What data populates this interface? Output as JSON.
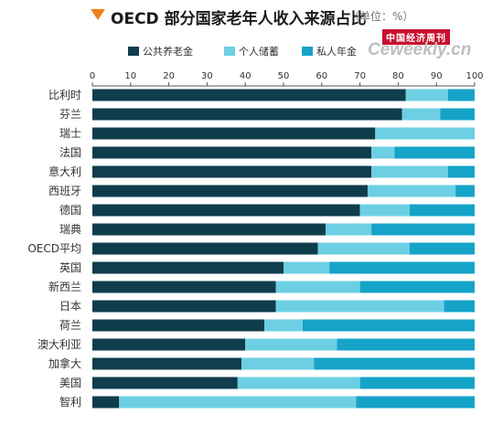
{
  "header": {
    "title": "OECD 部分国家老年人收入来源占比",
    "unit": "（单位：%）"
  },
  "watermark": {
    "top": "中国经济周刊",
    "bottom": "Ceweekly.cn"
  },
  "colors": {
    "title_marker": "#f07f1e",
    "public_pension": "#0f3d4c",
    "personal_savings": "#6dcfe4",
    "private_pension": "#16a3c8"
  },
  "chart_data": {
    "type": "bar",
    "orientation": "horizontal",
    "stacked": true,
    "title": "OECD 部分国家老年人收入来源占比",
    "xlim": [
      0,
      100
    ],
    "xticks": [
      0,
      10,
      20,
      30,
      40,
      50,
      60,
      70,
      80,
      90,
      100
    ],
    "legend_position": "top",
    "grid": false,
    "categories": [
      "比利时",
      "芬兰",
      "瑞士",
      "法国",
      "意大利",
      "西班牙",
      "德国",
      "瑞典",
      "OECD平均",
      "英国",
      "新西兰",
      "日本",
      "荷兰",
      "澳大利亚",
      "加拿大",
      "美国",
      "智利"
    ],
    "series": [
      {
        "name": "公共养老金",
        "color": "#0f3d4c",
        "values": [
          82,
          81,
          74,
          73,
          73,
          72,
          70,
          61,
          59,
          50,
          48,
          48,
          45,
          40,
          39,
          38,
          7
        ]
      },
      {
        "name": "个人储蓄",
        "color": "#6dcfe4",
        "values": [
          11,
          10,
          26,
          6,
          20,
          23,
          13,
          12,
          24,
          12,
          22,
          44,
          10,
          24,
          19,
          32,
          62
        ]
      },
      {
        "name": "私人年金",
        "color": "#16a3c8",
        "values": [
          7,
          9,
          0,
          21,
          7,
          5,
          17,
          27,
          17,
          38,
          30,
          8,
          45,
          36,
          42,
          30,
          31
        ]
      }
    ]
  }
}
